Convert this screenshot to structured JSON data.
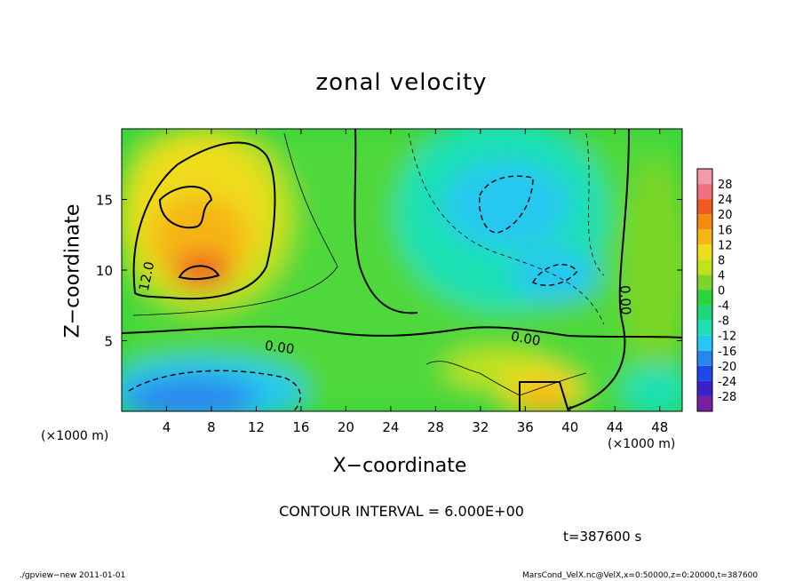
{
  "chart_data": {
    "type": "contour",
    "title": "zonal velocity",
    "xlabel": "X−coordinate",
    "ylabel": "Z−coordinate",
    "x_unit_label": "(×1000 m)",
    "xlim": [
      0,
      50
    ],
    "ylim": [
      0,
      20
    ],
    "x_ticks": [
      4,
      8,
      12,
      16,
      20,
      24,
      28,
      32,
      36,
      40,
      44,
      48
    ],
    "y_ticks": [
      5,
      10,
      15
    ],
    "colorbar": {
      "levels": [
        28,
        24,
        20,
        16,
        12,
        8,
        4,
        0,
        -4,
        -8,
        -12,
        -16,
        -20,
        -24,
        -28
      ],
      "colors": [
        "#7a1fa2",
        "#3a22c8",
        "#1e48e8",
        "#2a86ef",
        "#25c8f0",
        "#1fe0b4",
        "#1ed77a",
        "#2bd43c",
        "#7ad628",
        "#c2e21e",
        "#f0dc1e",
        "#f5b514",
        "#f58a10",
        "#f05a20",
        "#f07080",
        "#f49aa6"
      ]
    },
    "contour_labels": [
      "12.0",
      "0.00",
      "0.00",
      "0.00"
    ],
    "contour_interval_note": "CONTOUR INTERVAL = 6.000E+00",
    "time_note": "t=387600 s"
  },
  "footer": {
    "left": "./gpview−new   2011-01-01",
    "right": "MarsCond_VelX.nc@VelX,x=0:50000,z=0:20000,t=387600"
  }
}
